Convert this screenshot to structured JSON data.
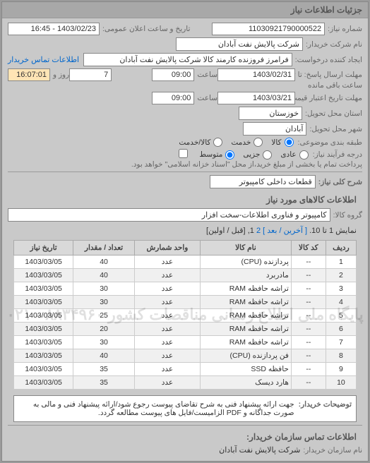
{
  "header": {
    "title": "جزئیات اطلاعات نیاز"
  },
  "form": {
    "req_no_label": "شماره نیاز:",
    "req_no": "11030921790000522",
    "announce_label": "تاریخ و ساعت اعلان عمومی:",
    "announce_val": "1403/02/23 - 16:45",
    "buyer_name_label": "نام شرکت خریدار:",
    "buyer_name": "شرکت پالایش نفت آبادان",
    "requester_label": "ایجاد کننده درخواست:",
    "requester": "فرامرز فروزنده کارمند کالا شرکت پالایش نفت آبادان",
    "buyer_contact_link": "اطلاعات تماس خریدار",
    "deadline_send_label": "مهلت ارسال پاسخ: تا تاریخ:",
    "deadline_date": "1403/02/31",
    "time_label": "ساعت",
    "deadline_time": "09:00",
    "days_label": "روز و",
    "days_val": "7",
    "remain_label": "ساعت باقی مانده",
    "remain_val": "16:07:01",
    "validity_label": "مهلت تاریخ اعتبار قیمت: تا تاریخ:",
    "validity_date": "1403/03/21",
    "validity_time": "09:00",
    "delivery_state_label": "استان محل تحویل:",
    "delivery_state": "خوزستان",
    "delivery_city_label": "شهر محل تحویل:",
    "delivery_city": "آبادان",
    "package_label": "طبقه بندی موضوعی:",
    "pkg_goods": "کالا",
    "pkg_service": "خدمت",
    "pkg_both": "کالا/خدمت",
    "priority_label": "درجه فرآیند نیاز:",
    "pri_normal": "عادی",
    "pri_urgent": "جزیی",
    "pri_medium": "متوسط",
    "pay_note": "پرداخت تمام یا بخشی از مبلغ خرید،از محل \"اسناد خزانه اسلامی\" خواهد بود.",
    "general_desc_label": "شرح کلی نیاز:",
    "general_desc": "قطعات داخلی کامپیوتر"
  },
  "items_section_title": "اطلاعات کالاهای مورد نیاز",
  "group_label": "گروه کالا:",
  "group_val": "کامپیوتر و فناوری اطلاعات-سخت افزار",
  "pager": {
    "display": "نمایش 1 تا 10.",
    "last": "[ آخرین /",
    "next": "بعد ]",
    "p2": "2",
    "p1": "1,",
    "first": "[قبل / اولین]"
  },
  "cols": {
    "row": "ردیف",
    "code": "کد کالا",
    "name": "نام کالا",
    "unit": "واحد شمارش",
    "qty": "تعداد / مقدار",
    "date": "تاریخ نیاز"
  },
  "rows": [
    {
      "r": "1",
      "code": "--",
      "name": "پردازنده (CPU)",
      "unit": "عدد",
      "qty": "40",
      "date": "1403/03/05"
    },
    {
      "r": "2",
      "code": "--",
      "name": "مادربرد",
      "unit": "عدد",
      "qty": "40",
      "date": "1403/03/05"
    },
    {
      "r": "3",
      "code": "--",
      "name": "تراشه حافظه RAM",
      "unit": "عدد",
      "qty": "30",
      "date": "1403/03/05"
    },
    {
      "r": "4",
      "code": "--",
      "name": "تراشه حافظه RAM",
      "unit": "عدد",
      "qty": "30",
      "date": "1403/03/05"
    },
    {
      "r": "5",
      "code": "--",
      "name": "تراشه حافظه RAM",
      "unit": "عدد",
      "qty": "25",
      "date": "1403/03/05"
    },
    {
      "r": "6",
      "code": "--",
      "name": "تراشه حافظه RAM",
      "unit": "عدد",
      "qty": "20",
      "date": "1403/03/05"
    },
    {
      "r": "7",
      "code": "--",
      "name": "تراشه حافظه RAM",
      "unit": "عدد",
      "qty": "30",
      "date": "1403/03/05"
    },
    {
      "r": "8",
      "code": "--",
      "name": "فن پردازنده (CPU)",
      "unit": "عدد",
      "qty": "40",
      "date": "1403/03/05"
    },
    {
      "r": "9",
      "code": "--",
      "name": "حافظه SSD",
      "unit": "عدد",
      "qty": "35",
      "date": "1403/03/05"
    },
    {
      "r": "10",
      "code": "--",
      "name": "هارد دیسک",
      "unit": "عدد",
      "qty": "35",
      "date": "1403/03/05"
    }
  ],
  "watermark": "پایگاه ملی اطلاع رسانی مناقصات کشور\n۸۸۳۴۹۶۰ - ۰۲۱",
  "buyer_note_label": "توضیحات خریدار:",
  "buyer_note": "جهت ارائه پیشنهاد فنی به شرح تقاضای پیوست رجوع شود/ارائه پیشنهاد فنی و مالی به صورت جداگانه و PDF الزامیست/فایل های پیوست مطالعه گردد.",
  "contact_section": "اطلاعات تماس سازمان خریدار:",
  "org_name_label": "نام سازمان خریدار:",
  "org_name": "شرکت پالایش نفت آبادان"
}
